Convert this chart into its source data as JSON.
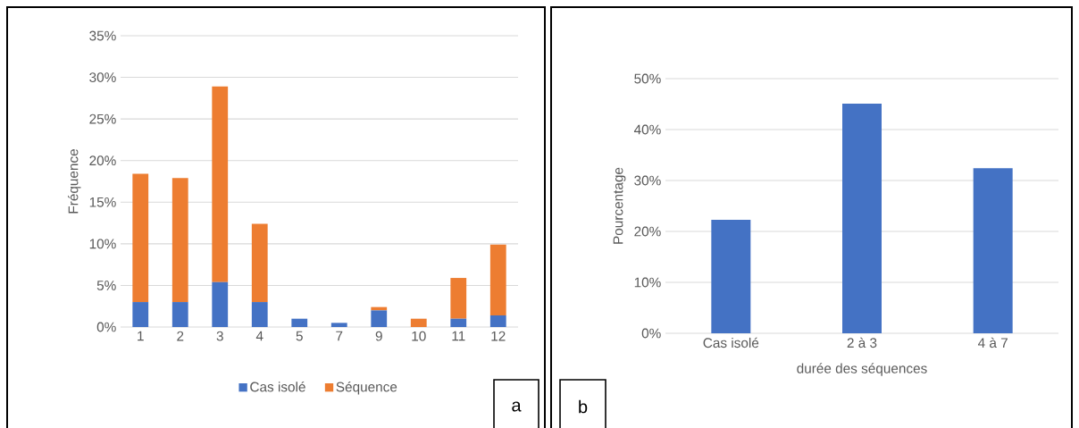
{
  "chart_data": [
    {
      "type": "bar",
      "stacked": true,
      "ylabel": "Fréquence",
      "categories": [
        "1",
        "2",
        "3",
        "4",
        "5",
        "7",
        "9",
        "10",
        "11",
        "12"
      ],
      "series": [
        {
          "name": "Cas isolé",
          "color": "#4472c4",
          "values": [
            3,
            3,
            5.4,
            3,
            1,
            0.5,
            2,
            0,
            1,
            1.4
          ]
        },
        {
          "name": "Séquence",
          "color": "#ed7d31",
          "values": [
            15.4,
            14.9,
            23.5,
            9.4,
            0,
            0,
            0.4,
            1,
            4.9,
            8.5
          ]
        }
      ],
      "ylim": [
        0,
        35
      ],
      "yticks": [
        {
          "value": 0,
          "label": "0%"
        },
        {
          "value": 5,
          "label": "5%"
        },
        {
          "value": 10,
          "label": "10%"
        },
        {
          "value": 15,
          "label": "15%"
        },
        {
          "value": 20,
          "label": "20%"
        },
        {
          "value": 25,
          "label": "25%"
        },
        {
          "value": 30,
          "label": "30%"
        },
        {
          "value": 35,
          "label": "35%"
        }
      ],
      "grid": "y",
      "legend": "bottom",
      "annotations": [
        "a"
      ]
    },
    {
      "type": "bar",
      "xlabel": "durée des séquences",
      "ylabel": "Pourcentage",
      "categories": [
        "Cas isolé",
        "2 à 3",
        "4 à 7"
      ],
      "values": [
        22.3,
        45.1,
        32.4
      ],
      "color": "#4472c4",
      "ylim": [
        0,
        50
      ],
      "yticks": [
        {
          "value": 0,
          "label": "0%"
        },
        {
          "value": 10,
          "label": "10%"
        },
        {
          "value": 20,
          "label": "20%"
        },
        {
          "value": 30,
          "label": "30%"
        },
        {
          "value": 40,
          "label": "40%"
        },
        {
          "value": 50,
          "label": "50%"
        }
      ],
      "grid": "y",
      "annotations": [
        "b"
      ]
    }
  ]
}
